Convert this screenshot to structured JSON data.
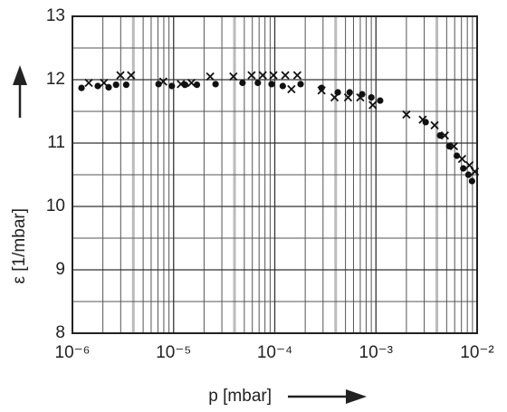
{
  "chart_data": {
    "type": "scatter",
    "xlabel": "p [mbar]",
    "ylabel": "ε [1/mbar]",
    "xscale": "log",
    "grid": true,
    "xlim": [
      1e-06,
      0.01
    ],
    "xticks": [
      {
        "value": 1e-06,
        "label": "10⁻⁶"
      },
      {
        "value": 1e-05,
        "label": "10⁻⁵"
      },
      {
        "value": 0.0001,
        "label": "10⁻⁴"
      },
      {
        "value": 0.001,
        "label": "10⁻³"
      },
      {
        "value": 0.01,
        "label": "10⁻²"
      }
    ],
    "ylim": [
      8,
      13
    ],
    "yticks": [
      8,
      9,
      10,
      11,
      12,
      13
    ],
    "series": [
      {
        "marker": "circle",
        "color": "#111111",
        "x": [
          1.23e-06,
          1.78e-06,
          2.28e-06,
          2.7e-06,
          3.4e-06,
          7.1e-06,
          9.6e-06,
          1.3e-05,
          1.7e-05,
          2.6e-05,
          4.8e-05,
          6.8e-05,
          9.3e-05,
          0.00012,
          0.00018,
          0.00029,
          0.00042,
          0.00055,
          0.00073,
          0.0009,
          0.0011,
          0.0031,
          0.0043,
          0.0053,
          0.0063,
          0.0073,
          0.0082,
          0.0089
        ],
        "values": [
          11.87,
          11.9,
          11.88,
          11.92,
          11.92,
          11.93,
          11.9,
          11.92,
          11.92,
          11.93,
          11.95,
          11.95,
          11.93,
          11.9,
          11.93,
          11.87,
          11.8,
          11.8,
          11.77,
          11.72,
          11.67,
          11.33,
          11.12,
          10.95,
          10.8,
          10.6,
          10.5,
          10.4
        ]
      },
      {
        "marker": "cross",
        "color": "#111111",
        "x": [
          1.45e-06,
          2.05e-06,
          2.98e-06,
          3.8e-06,
          7.9e-06,
          1.18e-05,
          1.5e-05,
          2.3e-05,
          3.9e-05,
          5.9e-05,
          7.6e-05,
          9.7e-05,
          0.000127,
          0.000146,
          0.000167,
          0.00029,
          0.00039,
          0.00053,
          0.0007,
          0.00093,
          0.002,
          0.0029,
          0.0038,
          0.0048,
          0.0059,
          0.0071,
          0.0084,
          0.0095
        ],
        "values": [
          11.95,
          11.95,
          12.07,
          12.07,
          11.97,
          11.93,
          11.95,
          12.05,
          12.05,
          12.07,
          12.07,
          12.07,
          12.07,
          11.85,
          12.07,
          11.83,
          11.72,
          11.72,
          11.72,
          11.6,
          11.45,
          11.37,
          11.28,
          11.12,
          10.95,
          10.75,
          10.65,
          10.55
        ]
      }
    ]
  }
}
